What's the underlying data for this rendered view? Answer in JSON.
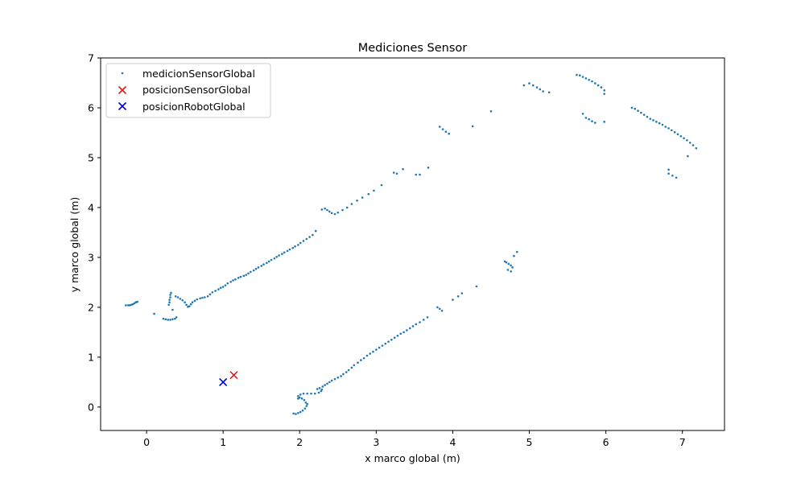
{
  "chart_data": {
    "type": "scatter",
    "title": "Mediciones Sensor",
    "xlabel": "x marco global (m)",
    "ylabel": "y marco global (m)",
    "xlim": [
      -0.6,
      7.55
    ],
    "ylim": [
      -0.47,
      7.0
    ],
    "xticks": [
      0,
      1,
      2,
      3,
      4,
      5,
      6,
      7
    ],
    "yticks": [
      0,
      1,
      2,
      3,
      4,
      5,
      6,
      7
    ],
    "grid": false,
    "legend_position": "top-left",
    "series": [
      {
        "name": "medicionSensorGlobal",
        "marker": "dot",
        "color": "#1f77b4",
        "points": [
          [
            -0.27,
            2.04
          ],
          [
            -0.24,
            2.04
          ],
          [
            -0.22,
            2.04
          ],
          [
            -0.2,
            2.05
          ],
          [
            -0.18,
            2.06
          ],
          [
            -0.16,
            2.08
          ],
          [
            -0.14,
            2.1
          ],
          [
            -0.12,
            2.11
          ],
          [
            0.1,
            1.87
          ],
          [
            0.22,
            1.77
          ],
          [
            0.25,
            1.76
          ],
          [
            0.28,
            1.75
          ],
          [
            0.31,
            1.75
          ],
          [
            0.34,
            1.76
          ],
          [
            0.37,
            1.77
          ],
          [
            0.39,
            1.8
          ],
          [
            0.29,
            2.05
          ],
          [
            0.3,
            2.1
          ],
          [
            0.3,
            2.15
          ],
          [
            0.31,
            2.2
          ],
          [
            0.31,
            2.25
          ],
          [
            0.32,
            2.29
          ],
          [
            0.34,
            1.95
          ],
          [
            0.38,
            2.22
          ],
          [
            0.41,
            2.2
          ],
          [
            0.44,
            2.17
          ],
          [
            0.47,
            2.14
          ],
          [
            0.5,
            2.1
          ],
          [
            0.52,
            2.05
          ],
          [
            0.54,
            2.01
          ],
          [
            0.56,
            2.02
          ],
          [
            0.58,
            2.06
          ],
          [
            0.6,
            2.1
          ],
          [
            0.63,
            2.13
          ],
          [
            0.66,
            2.16
          ],
          [
            0.7,
            2.18
          ],
          [
            0.73,
            2.19
          ],
          [
            0.76,
            2.2
          ],
          [
            0.8,
            2.22
          ],
          [
            0.83,
            2.26
          ],
          [
            0.86,
            2.3
          ],
          [
            0.9,
            2.33
          ],
          [
            0.94,
            2.36
          ],
          [
            0.97,
            2.39
          ],
          [
            1.0,
            2.41
          ],
          [
            1.03,
            2.44
          ],
          [
            1.06,
            2.48
          ],
          [
            1.1,
            2.51
          ],
          [
            1.13,
            2.54
          ],
          [
            1.16,
            2.56
          ],
          [
            1.2,
            2.59
          ],
          [
            1.23,
            2.61
          ],
          [
            1.27,
            2.63
          ],
          [
            1.3,
            2.65
          ],
          [
            1.33,
            2.68
          ],
          [
            1.36,
            2.71
          ],
          [
            1.4,
            2.74
          ],
          [
            1.43,
            2.77
          ],
          [
            1.46,
            2.8
          ],
          [
            1.5,
            2.83
          ],
          [
            1.53,
            2.86
          ],
          [
            1.57,
            2.89
          ],
          [
            1.6,
            2.92
          ],
          [
            1.63,
            2.95
          ],
          [
            1.67,
            2.98
          ],
          [
            1.7,
            3.01
          ],
          [
            1.73,
            3.04
          ],
          [
            1.77,
            3.07
          ],
          [
            1.8,
            3.1
          ],
          [
            1.84,
            3.13
          ],
          [
            1.87,
            3.16
          ],
          [
            1.91,
            3.19
          ],
          [
            1.94,
            3.22
          ],
          [
            1.98,
            3.25
          ],
          [
            2.01,
            3.29
          ],
          [
            2.05,
            3.33
          ],
          [
            2.09,
            3.37
          ],
          [
            2.13,
            3.41
          ],
          [
            2.17,
            3.45
          ],
          [
            2.21,
            3.53
          ],
          [
            2.29,
            3.96
          ],
          [
            2.33,
            3.98
          ],
          [
            2.36,
            3.95
          ],
          [
            2.39,
            3.92
          ],
          [
            2.42,
            3.89
          ],
          [
            2.46,
            3.87
          ],
          [
            2.5,
            3.9
          ],
          [
            2.56,
            3.95
          ],
          [
            2.62,
            4.0
          ],
          [
            2.68,
            4.07
          ],
          [
            2.75,
            4.14
          ],
          [
            2.82,
            4.2
          ],
          [
            2.9,
            4.27
          ],
          [
            2.97,
            4.34
          ],
          [
            3.07,
            4.45
          ],
          [
            3.23,
            4.7
          ],
          [
            3.27,
            4.68
          ],
          [
            3.35,
            4.77
          ],
          [
            3.52,
            4.66
          ],
          [
            3.57,
            4.66
          ],
          [
            3.68,
            4.8
          ],
          [
            3.83,
            5.62
          ],
          [
            3.87,
            5.57
          ],
          [
            3.91,
            5.52
          ],
          [
            3.95,
            5.48
          ],
          [
            4.26,
            5.63
          ],
          [
            4.5,
            5.93
          ],
          [
            4.93,
            6.45
          ],
          [
            5.0,
            6.49
          ],
          [
            5.05,
            6.45
          ],
          [
            5.1,
            6.41
          ],
          [
            5.14,
            6.37
          ],
          [
            5.18,
            6.33
          ],
          [
            5.26,
            6.31
          ],
          [
            5.62,
            6.66
          ],
          [
            5.66,
            6.65
          ],
          [
            5.7,
            6.62
          ],
          [
            5.74,
            6.59
          ],
          [
            5.78,
            6.56
          ],
          [
            5.82,
            6.53
          ],
          [
            5.86,
            6.49
          ],
          [
            5.9,
            6.45
          ],
          [
            5.94,
            6.41
          ],
          [
            5.98,
            6.35
          ],
          [
            5.98,
            6.28
          ],
          [
            5.7,
            5.88
          ],
          [
            5.74,
            5.8
          ],
          [
            5.78,
            5.77
          ],
          [
            5.82,
            5.73
          ],
          [
            5.86,
            5.7
          ],
          [
            5.98,
            5.72
          ],
          [
            6.34,
            6.0
          ],
          [
            6.38,
            5.98
          ],
          [
            6.42,
            5.94
          ],
          [
            6.46,
            5.9
          ],
          [
            6.5,
            5.86
          ],
          [
            6.54,
            5.82
          ],
          [
            6.58,
            5.78
          ],
          [
            6.62,
            5.75
          ],
          [
            6.66,
            5.72
          ],
          [
            6.7,
            5.69
          ],
          [
            6.74,
            5.66
          ],
          [
            6.78,
            5.62
          ],
          [
            6.82,
            5.59
          ],
          [
            6.86,
            5.55
          ],
          [
            6.9,
            5.51
          ],
          [
            6.94,
            5.47
          ],
          [
            6.98,
            5.43
          ],
          [
            7.02,
            5.39
          ],
          [
            7.06,
            5.35
          ],
          [
            7.1,
            5.3
          ],
          [
            7.14,
            5.25
          ],
          [
            7.18,
            5.19
          ],
          [
            7.07,
            5.03
          ],
          [
            6.82,
            4.76
          ],
          [
            6.82,
            4.68
          ],
          [
            6.87,
            4.64
          ],
          [
            6.92,
            4.6
          ],
          [
            1.92,
            -0.13
          ],
          [
            1.95,
            -0.14
          ],
          [
            1.98,
            -0.12
          ],
          [
            2.01,
            -0.1
          ],
          [
            2.04,
            -0.07
          ],
          [
            2.07,
            -0.03
          ],
          [
            2.09,
            0.02
          ],
          [
            2.1,
            0.06
          ],
          [
            2.08,
            0.09
          ],
          [
            2.06,
            0.14
          ],
          [
            2.03,
            0.17
          ],
          [
            2.0,
            0.19
          ],
          [
            1.98,
            0.17
          ],
          [
            1.98,
            0.22
          ],
          [
            2.01,
            0.25
          ],
          [
            2.05,
            0.27
          ],
          [
            2.1,
            0.27
          ],
          [
            2.15,
            0.27
          ],
          [
            2.2,
            0.27
          ],
          [
            2.25,
            0.29
          ],
          [
            2.28,
            0.32
          ],
          [
            2.29,
            0.35
          ],
          [
            2.26,
            0.38
          ],
          [
            2.23,
            0.36
          ],
          [
            2.3,
            0.41
          ],
          [
            2.33,
            0.44
          ],
          [
            2.36,
            0.47
          ],
          [
            2.39,
            0.5
          ],
          [
            2.42,
            0.53
          ],
          [
            2.46,
            0.56
          ],
          [
            2.5,
            0.59
          ],
          [
            2.54,
            0.62
          ],
          [
            2.57,
            0.66
          ],
          [
            2.61,
            0.7
          ],
          [
            2.64,
            0.74
          ],
          [
            2.68,
            0.79
          ],
          [
            2.71,
            0.84
          ],
          [
            2.76,
            0.89
          ],
          [
            2.8,
            0.94
          ],
          [
            2.84,
            0.98
          ],
          [
            2.88,
            1.03
          ],
          [
            2.92,
            1.07
          ],
          [
            2.96,
            1.11
          ],
          [
            3.0,
            1.15
          ],
          [
            3.04,
            1.19
          ],
          [
            3.08,
            1.23
          ],
          [
            3.12,
            1.27
          ],
          [
            3.16,
            1.31
          ],
          [
            3.2,
            1.35
          ],
          [
            3.24,
            1.39
          ],
          [
            3.28,
            1.43
          ],
          [
            3.32,
            1.47
          ],
          [
            3.36,
            1.5
          ],
          [
            3.4,
            1.54
          ],
          [
            3.44,
            1.58
          ],
          [
            3.48,
            1.62
          ],
          [
            3.52,
            1.66
          ],
          [
            3.57,
            1.7
          ],
          [
            3.62,
            1.75
          ],
          [
            3.67,
            1.8
          ],
          [
            3.8,
            2.0
          ],
          [
            3.83,
            1.97
          ],
          [
            3.86,
            1.93
          ],
          [
            4.0,
            2.15
          ],
          [
            4.07,
            2.22
          ],
          [
            4.12,
            2.28
          ],
          [
            4.31,
            2.42
          ],
          [
            4.68,
            2.92
          ],
          [
            4.7,
            2.9
          ],
          [
            4.73,
            2.87
          ],
          [
            4.76,
            2.84
          ],
          [
            4.78,
            2.8
          ],
          [
            4.72,
            2.75
          ],
          [
            4.76,
            2.72
          ],
          [
            4.8,
            3.03
          ],
          [
            4.84,
            3.11
          ]
        ]
      },
      {
        "name": "posicionSensorGlobal",
        "marker": "x",
        "color": "#e31a1c",
        "points": [
          [
            1.14,
            0.64
          ]
        ]
      },
      {
        "name": "posicionRobotGlobal",
        "marker": "x",
        "color": "#0000cc",
        "points": [
          [
            1.0,
            0.5
          ]
        ]
      }
    ]
  }
}
